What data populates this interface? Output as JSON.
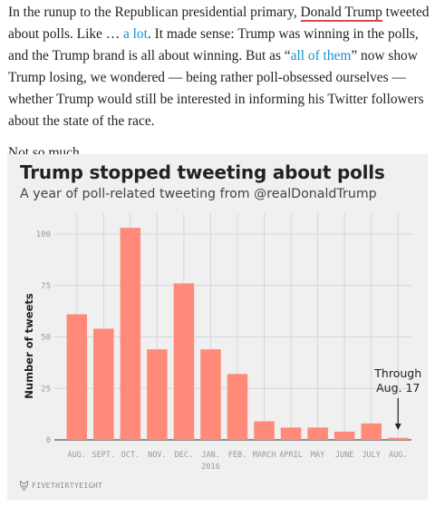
{
  "article": {
    "p1": {
      "t1": "In the runup to the Republican presidential primary, ",
      "link_person": "Donald Trump",
      "t2": " tweeted about polls. Like … ",
      "link_lot": "a lot",
      "t3": ". It made sense: Trump was winning in the polls, and the Trump brand is all about winning. But as “",
      "link_all": "all of them",
      "t4": "” now show Trump losing, we wondered — being rather poll-obsessed ourselves — whether Trump would still be interested in informing his Twitter followers about the state of the race."
    },
    "p2": "Not so much."
  },
  "chart_data": {
    "type": "bar",
    "title": "Trump stopped tweeting about polls",
    "subtitle": "A year of poll-related tweeting from @realDonaldTrump",
    "xlabel": "",
    "ylabel": "Number of tweets",
    "categories": [
      "AUG.",
      "SEPT.",
      "OCT.",
      "NOV.",
      "DEC.",
      "JAN.",
      "FEB.",
      "MARCH",
      "APRIL",
      "MAY",
      "JUNE",
      "JULY",
      "AUG."
    ],
    "category_sublabels": [
      "",
      "",
      "",
      "",
      "",
      "2016",
      "",
      "",
      "",
      "",
      "",
      "",
      ""
    ],
    "values": [
      61,
      54,
      103,
      44,
      76,
      44,
      32,
      9,
      6,
      6,
      4,
      8,
      1
    ],
    "ylim": [
      0,
      110
    ],
    "yticks": [
      0,
      25,
      50,
      75,
      100
    ],
    "grid": true,
    "bar_color": "#ff8a7a",
    "annotation": {
      "text_line1": "Through",
      "text_line2": "Aug. 17",
      "category_index": 12
    }
  },
  "footer": {
    "brand": "FIVETHIRTYEIGHT",
    "icon": "fivethirtyeight-fox-icon"
  }
}
